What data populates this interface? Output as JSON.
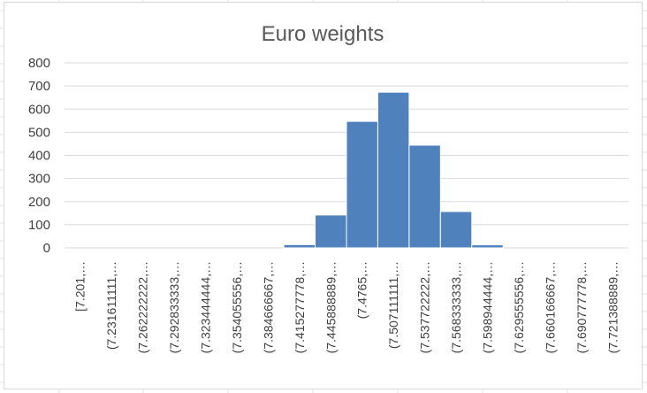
{
  "chart_data": {
    "type": "bar",
    "title": "Euro weights",
    "xlabel": "",
    "ylabel": "",
    "ylim": [
      0,
      800
    ],
    "yticks": [
      0,
      100,
      200,
      300,
      400,
      500,
      600,
      700,
      800
    ],
    "categories": [
      "[7.201,…",
      "(7.231611111,…",
      "(7.262222222,…",
      "(7.292833333,…",
      "(7.323444444,…",
      "(7.354055556,…",
      "(7.384666667,…",
      "(7.415277778,…",
      "(7.445888889,…",
      "(7.4765,…",
      "(7.507111111,…",
      "(7.537722222,…",
      "(7.568333333,…",
      "(7.598944444,…",
      "(7.629555556,…",
      "(7.660166667,…",
      "(7.690777778,…",
      "(7.721388889,…"
    ],
    "values": [
      0,
      0,
      0,
      0,
      0,
      0,
      0,
      14,
      142,
      547,
      673,
      444,
      157,
      13,
      0,
      0,
      0,
      0
    ],
    "grid": true,
    "legend": "none",
    "bar_color": "#4f81bd",
    "gridline_color": "#d9d9d9"
  }
}
